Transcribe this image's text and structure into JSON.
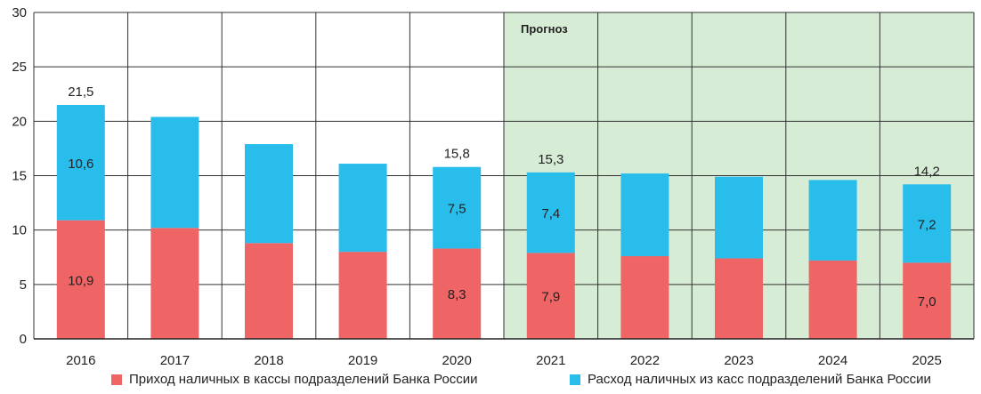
{
  "chart_data": {
    "type": "bar",
    "stacked": true,
    "categories": [
      "2016",
      "2017",
      "2018",
      "2019",
      "2020",
      "2021",
      "2022",
      "2023",
      "2024",
      "2025"
    ],
    "series": [
      {
        "name": "Приход наличных в кассы подразделений Банка России",
        "color": "#ef6464",
        "values": [
          10.9,
          10.2,
          8.8,
          8.0,
          8.3,
          7.9,
          7.6,
          7.4,
          7.2,
          7.0
        ]
      },
      {
        "name": "Расход наличных из касс подразделений Банка России",
        "color": "#29bdec",
        "values": [
          10.6,
          10.2,
          9.1,
          8.1,
          7.5,
          7.4,
          7.6,
          7.5,
          7.4,
          7.2
        ]
      }
    ],
    "segment_labels": {
      "bottom": [
        "10,9",
        "",
        "",
        "",
        "8,3",
        "7,9",
        "",
        "",
        "",
        "7,0"
      ],
      "top": [
        "10,6",
        "",
        "",
        "",
        "7,5",
        "7,4",
        "",
        "",
        "",
        "7,2"
      ]
    },
    "total_labels": [
      "21,5",
      "",
      "",
      "",
      "15,8",
      "15,3",
      "",
      "",
      "",
      "14,2"
    ],
    "yticks": [
      "0",
      "5",
      "10",
      "15",
      "20",
      "25",
      "30"
    ],
    "ylim": [
      0,
      30
    ],
    "grid": true,
    "forecast": {
      "label": "Прогноз",
      "start_category": "2021",
      "color": "#d6ecd5"
    },
    "legend_position": "bottom",
    "title": "",
    "xlabel": "",
    "ylabel": ""
  }
}
